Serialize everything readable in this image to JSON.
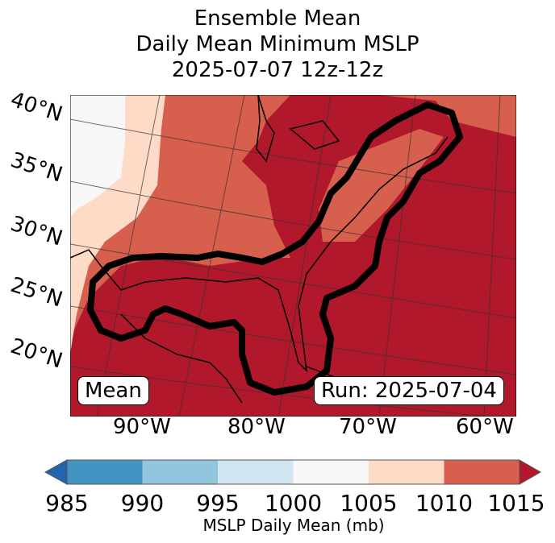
{
  "title": {
    "line1": "Ensemble Mean",
    "line2": "Daily Mean Minimum MSLP",
    "line3": "2025-07-07 12z-12z"
  },
  "map": {
    "lat_labels": [
      "40°N",
      "35°N",
      "30°N",
      "25°N",
      "20°N"
    ],
    "lon_labels": [
      "90°W",
      "80°W",
      "70°W",
      "60°W"
    ],
    "left_box": "Mean",
    "right_box": "Run: 2025-07-04"
  },
  "colorbar": {
    "label": "MSLP Daily Mean (mb)",
    "ticks": [
      "985",
      "990",
      "995",
      "1000",
      "1005",
      "1010",
      "1015"
    ],
    "colors": [
      "#4393c3",
      "#92c5de",
      "#d1e5f0",
      "#f7f7f7",
      "#fddbc7",
      "#d6604d"
    ],
    "under_color": "#2166ac",
    "over_color": "#b2182b"
  },
  "chart_data": {
    "type": "heatmap",
    "title": "Ensemble Mean Daily Mean Minimum MSLP 2025-07-07 12z-12z",
    "levels": [
      985,
      990,
      995,
      1000,
      1005,
      1010,
      1015
    ],
    "colorbar_label": "MSLP Daily Mean (mb)"
  }
}
